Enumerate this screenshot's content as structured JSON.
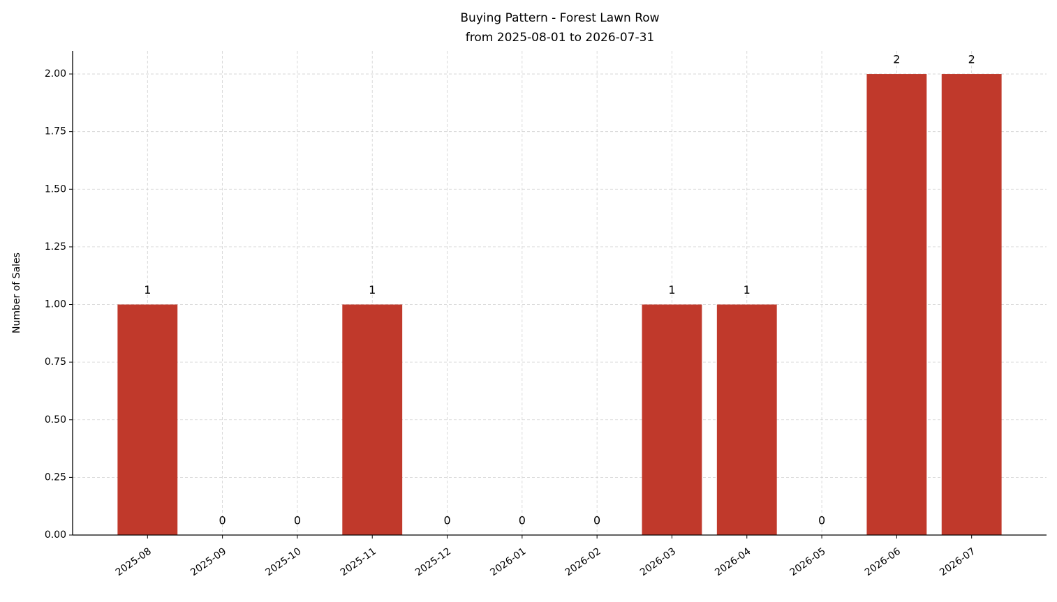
{
  "chart_data": {
    "type": "bar",
    "title": "Buying Pattern - Forest Lawn Row",
    "subtitle": "from 2025-08-01 to 2026-07-31",
    "y_label": "Number of Sales",
    "categories": [
      "2025-08",
      "2025-09",
      "2025-10",
      "2025-11",
      "2025-12",
      "2026-01",
      "2026-02",
      "2026-03",
      "2026-04",
      "2026-05",
      "2026-06",
      "2026-07"
    ],
    "values": [
      1,
      0,
      0,
      1,
      0,
      0,
      0,
      1,
      1,
      0,
      2,
      2
    ],
    "color": "#c0392b",
    "ylim": [
      0,
      2.1
    ],
    "yticks": [
      {
        "value": 0,
        "label": "0.00"
      },
      {
        "value": 0.25,
        "label": "0.25"
      },
      {
        "value": 0.5,
        "label": "0.50"
      },
      {
        "value": 0.75,
        "label": "0.75"
      },
      {
        "value": 1,
        "label": "1.00"
      },
      {
        "value": 1.25,
        "label": "1.25"
      },
      {
        "value": 1.5,
        "label": "1.50"
      },
      {
        "value": 1.75,
        "label": "1.75"
      },
      {
        "value": 2,
        "label": "2.00"
      }
    ],
    "grid": true
  }
}
